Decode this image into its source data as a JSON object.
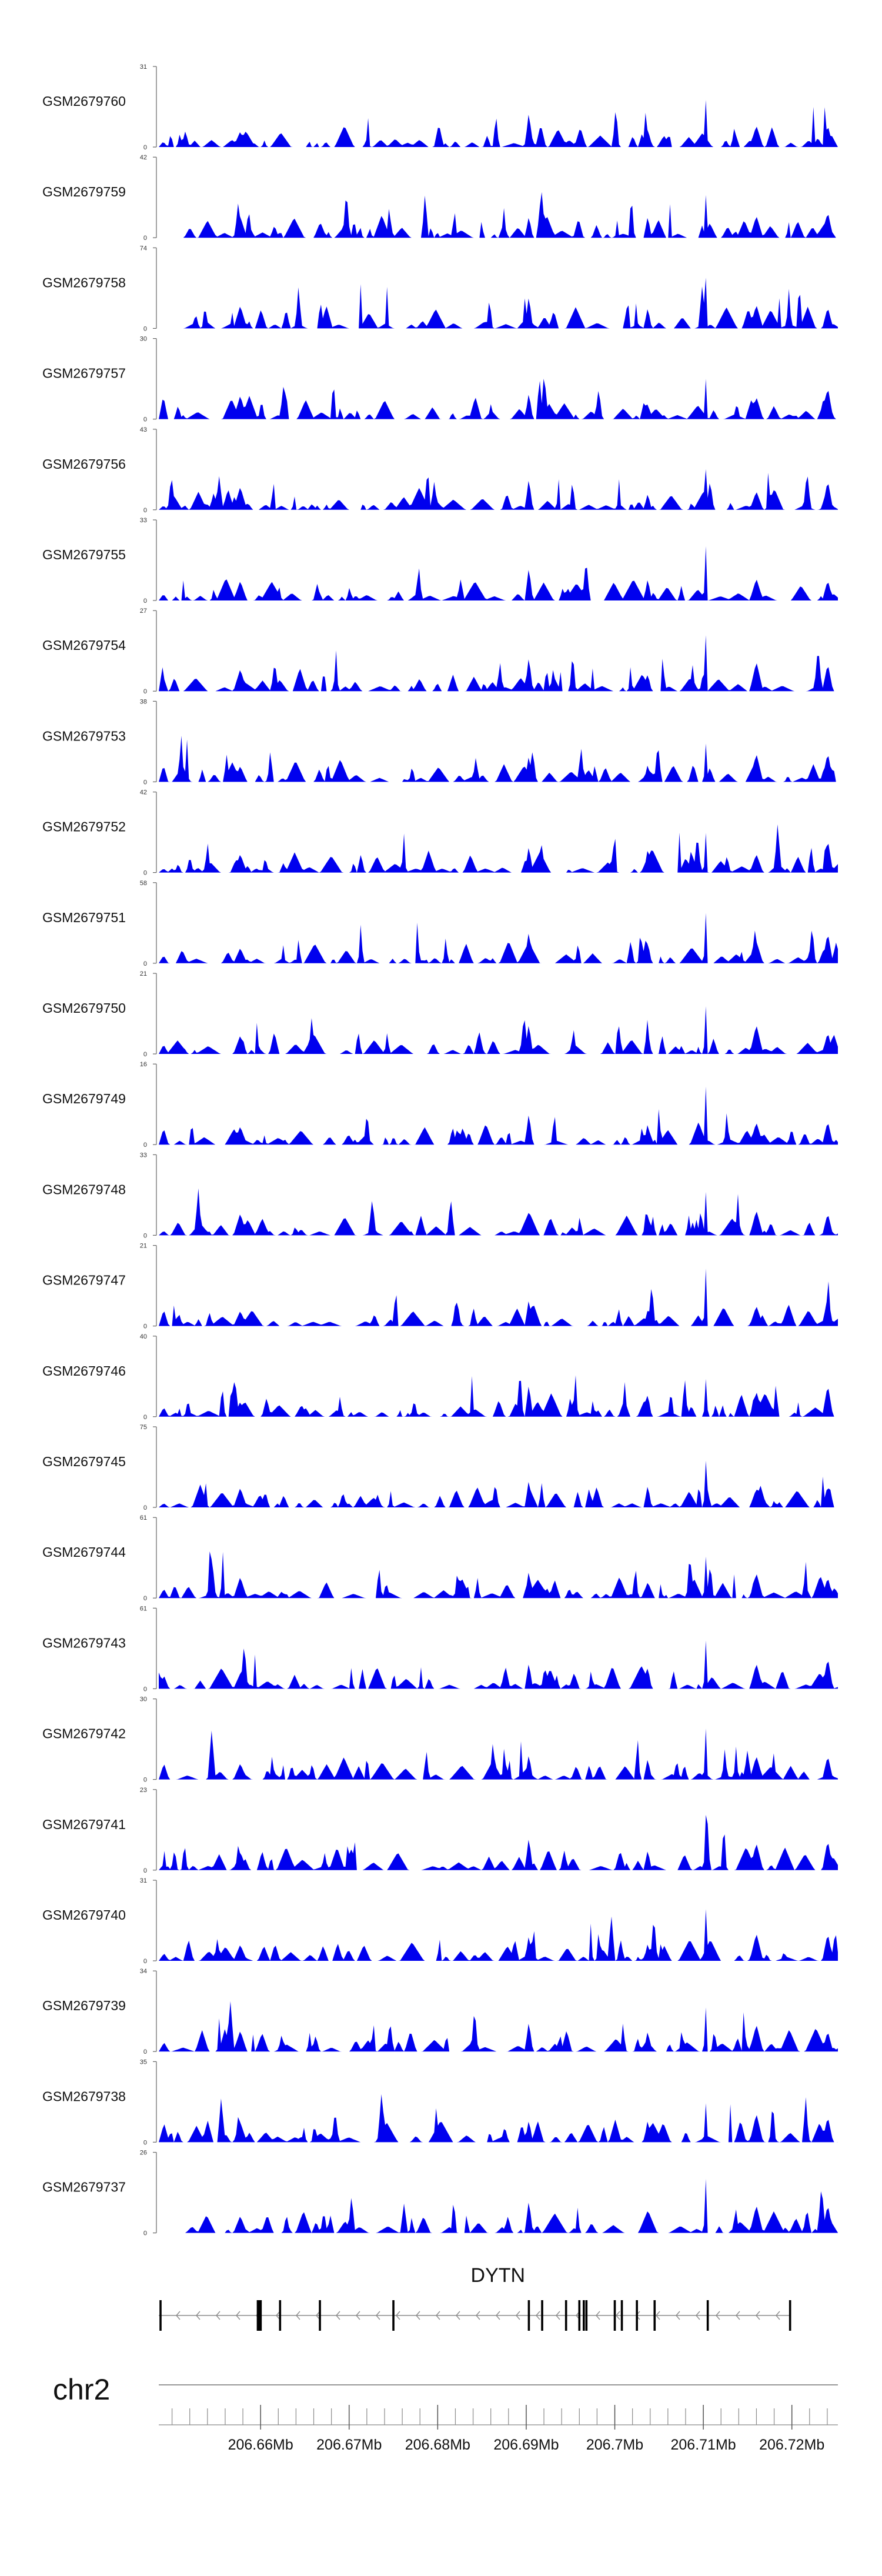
{
  "chart_data": {
    "type": "area",
    "title": "",
    "fill_color": "#0000ee",
    "axis_color": "#666666",
    "tracks": [
      {
        "name": "GSM2679760",
        "ymax": 31,
        "ymin": 0,
        "seed": 11
      },
      {
        "name": "GSM2679759",
        "ymax": 42,
        "ymin": 0,
        "seed": 23
      },
      {
        "name": "GSM2679758",
        "ymax": 74,
        "ymin": 0,
        "seed": 37
      },
      {
        "name": "GSM2679757",
        "ymax": 30,
        "ymin": 0,
        "seed": 41
      },
      {
        "name": "GSM2679756",
        "ymax": 43,
        "ymin": 0,
        "seed": 53
      },
      {
        "name": "GSM2679755",
        "ymax": 33,
        "ymin": 0,
        "seed": 67
      },
      {
        "name": "GSM2679754",
        "ymax": 27,
        "ymin": 0,
        "seed": 71
      },
      {
        "name": "GSM2679753",
        "ymax": 38,
        "ymin": 0,
        "seed": 83
      },
      {
        "name": "GSM2679752",
        "ymax": 42,
        "ymin": 0,
        "seed": 97
      },
      {
        "name": "GSM2679751",
        "ymax": 58,
        "ymin": 0,
        "seed": 101
      },
      {
        "name": "GSM2679750",
        "ymax": 21,
        "ymin": 0,
        "seed": 113
      },
      {
        "name": "GSM2679749",
        "ymax": 16,
        "ymin": 0,
        "seed": 127
      },
      {
        "name": "GSM2679748",
        "ymax": 33,
        "ymin": 0,
        "seed": 131
      },
      {
        "name": "GSM2679747",
        "ymax": 21,
        "ymin": 0,
        "seed": 149
      },
      {
        "name": "GSM2679746",
        "ymax": 40,
        "ymin": 0,
        "seed": 157
      },
      {
        "name": "GSM2679745",
        "ymax": 75,
        "ymin": 0,
        "seed": 163
      },
      {
        "name": "GSM2679744",
        "ymax": 61,
        "ymin": 0,
        "seed": 179
      },
      {
        "name": "GSM2679743",
        "ymax": 61,
        "ymin": 0,
        "seed": 181
      },
      {
        "name": "GSM2679742",
        "ymax": 30,
        "ymin": 0,
        "seed": 193
      },
      {
        "name": "GSM2679741",
        "ymax": 23,
        "ymin": 0,
        "seed": 199
      },
      {
        "name": "GSM2679740",
        "ymax": 31,
        "ymin": 0,
        "seed": 211
      },
      {
        "name": "GSM2679739",
        "ymax": 34,
        "ymin": 0,
        "seed": 223
      },
      {
        "name": "GSM2679738",
        "ymax": 35,
        "ymin": 0,
        "seed": 227
      },
      {
        "name": "GSM2679737",
        "ymax": 26,
        "ymin": 0,
        "seed": 233
      }
    ],
    "x_axis": {
      "unit": "Mb",
      "min": 206.6485,
      "max": 206.7252,
      "labeled_ticks": [
        206.66,
        206.67,
        206.68,
        206.69,
        206.7,
        206.71,
        206.72
      ],
      "tick_labels": [
        "206.66Mb",
        "206.67Mb",
        "206.68Mb",
        "206.69Mb",
        "206.7Mb",
        "206.71Mb",
        "206.72Mb"
      ],
      "minor_step": 0.002
    },
    "chromosome": "chr2",
    "gene": {
      "name": "DYTN",
      "strand": "-",
      "start": 206.6485,
      "end": 206.7198,
      "exons": [
        206.6487,
        206.6598,
        206.6599,
        206.66,
        206.6622,
        206.6667,
        206.675,
        206.6903,
        206.6918,
        206.6945,
        206.696,
        206.6965,
        206.6968,
        206.7,
        206.7008,
        206.7025,
        206.7045,
        206.7105,
        206.7198
      ]
    }
  }
}
